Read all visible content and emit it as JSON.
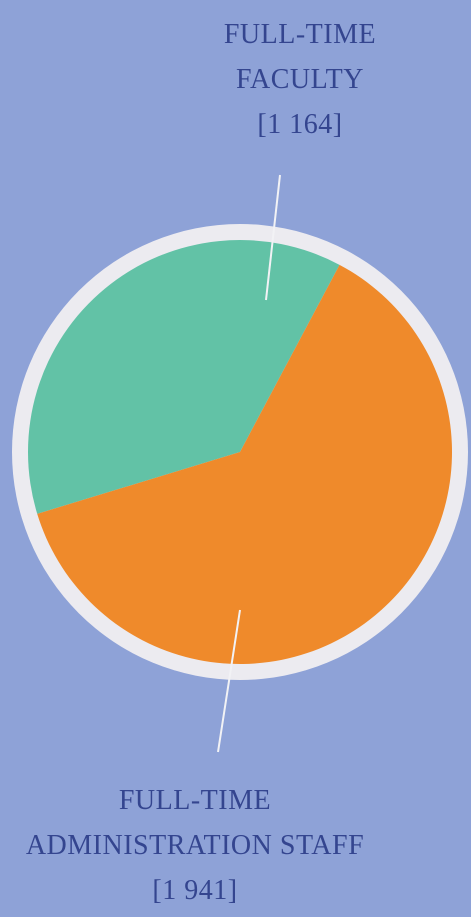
{
  "chart_data": {
    "type": "pie",
    "categories": [
      "FULL-TIME FACULTY",
      "FULL-TIME ADMINISTRATION STAFF"
    ],
    "values": [
      1164,
      1941
    ],
    "value_labels": [
      "[1 164]",
      "[1 941]"
    ],
    "colors": [
      "#62c2a6",
      "#ef8a2b"
    ]
  }
}
